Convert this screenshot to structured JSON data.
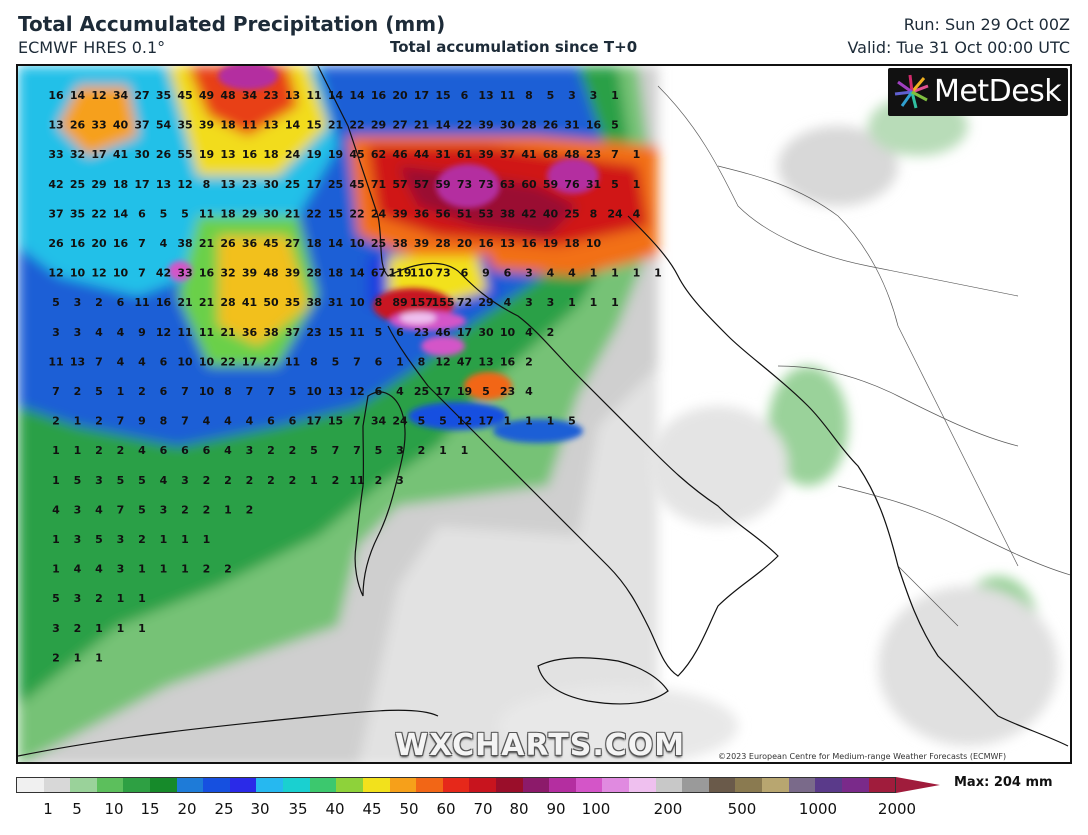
{
  "header": {
    "title": "Total Accumulated Precipitation (mm)",
    "model": "ECMWF HRES 0.1°",
    "subtitle": "Total accumulation since T+0",
    "run": "Run: Sun 29 Oct 00Z",
    "valid": "Valid: Tue 31 Oct 00:00 UTC"
  },
  "logo": {
    "text": "MetDesk",
    "icon": "metdesk-burst-icon"
  },
  "watermark": "WXCHARTS.COM",
  "copyright": "©2023 European Centre for Medium-range Weather Forecasts (ECMWF)",
  "colorbar": {
    "max_label": "Max: 204 mm",
    "ticks": [
      "1",
      "5",
      "10",
      "15",
      "20",
      "25",
      "30",
      "35",
      "40",
      "45",
      "50",
      "60",
      "70",
      "80",
      "90",
      "100",
      "200",
      "500",
      "1000",
      "2000"
    ],
    "colors": [
      "#f0f0f0",
      "#d8d8d8",
      "#9ad29a",
      "#5cbf5c",
      "#2ea043",
      "#168a2a",
      "#1e7bd8",
      "#1650e0",
      "#2a2ae8",
      "#26b8f0",
      "#1ad0d0",
      "#3cc86e",
      "#8ed23a",
      "#f2e11c",
      "#f6a01a",
      "#f26616",
      "#e6281a",
      "#c8141e",
      "#9a0e2a",
      "#8c1a6a",
      "#b42ea0",
      "#d455c8",
      "#e08ae0",
      "#efc0ef",
      "#c8c8c8",
      "#9a9a9a",
      "#6a5a4a",
      "#8a7a50",
      "#b8a670",
      "#7a6a8a",
      "#5a3a8a",
      "#7a2a8a",
      "#a01c3c"
    ]
  },
  "grid_values": [
    [
      "16",
      "14",
      "12",
      "34",
      "27",
      "35",
      "45",
      "49",
      "48",
      "34",
      "23",
      "13",
      "11",
      "14",
      "14",
      "16",
      "20",
      "17",
      "15",
      "6",
      "13",
      "11",
      "8",
      "5",
      "3",
      "3",
      "1"
    ],
    [
      "13",
      "26",
      "33",
      "40",
      "37",
      "54",
      "35",
      "39",
      "18",
      "11",
      "13",
      "14",
      "15",
      "21",
      "22",
      "29",
      "27",
      "21",
      "14",
      "22",
      "39",
      "30",
      "28",
      "26",
      "31",
      "16",
      "5"
    ],
    [
      "33",
      "32",
      "17",
      "41",
      "30",
      "26",
      "55",
      "19",
      "13",
      "16",
      "18",
      "24",
      "19",
      "19",
      "45",
      "62",
      "46",
      "44",
      "31",
      "61",
      "39",
      "37",
      "41",
      "68",
      "48",
      "23",
      "7",
      "1"
    ],
    [
      "42",
      "25",
      "29",
      "18",
      "17",
      "13",
      "12",
      "8",
      "13",
      "23",
      "30",
      "25",
      "17",
      "25",
      "45",
      "71",
      "57",
      "57",
      "59",
      "73",
      "73",
      "63",
      "60",
      "59",
      "76",
      "31",
      "5",
      "1"
    ],
    [
      "37",
      "35",
      "22",
      "14",
      "6",
      "5",
      "5",
      "11",
      "18",
      "29",
      "30",
      "21",
      "22",
      "15",
      "22",
      "24",
      "39",
      "36",
      "56",
      "51",
      "53",
      "38",
      "42",
      "40",
      "25",
      "8",
      "24",
      "4"
    ],
    [
      "26",
      "16",
      "20",
      "16",
      "7",
      "4",
      "38",
      "21",
      "26",
      "36",
      "45",
      "27",
      "18",
      "14",
      "10",
      "25",
      "38",
      "39",
      "28",
      "20",
      "16",
      "13",
      "16",
      "19",
      "18",
      "10"
    ],
    [
      "12",
      "10",
      "12",
      "10",
      "7",
      "42",
      "33",
      "16",
      "32",
      "39",
      "48",
      "39",
      "28",
      "18",
      "14",
      "67",
      "119",
      "110",
      "73",
      "6",
      "9",
      "6",
      "3",
      "4",
      "4",
      "1",
      "1",
      "1",
      "1"
    ],
    [
      "5",
      "3",
      "2",
      "6",
      "11",
      "16",
      "21",
      "21",
      "28",
      "41",
      "50",
      "35",
      "38",
      "31",
      "10",
      "8",
      "89",
      "157",
      "155",
      "72",
      "29",
      "4",
      "3",
      "3",
      "1",
      "1",
      "1"
    ],
    [
      "3",
      "3",
      "4",
      "4",
      "9",
      "12",
      "11",
      "11",
      "21",
      "36",
      "38",
      "37",
      "23",
      "15",
      "11",
      "5",
      "6",
      "23",
      "46",
      "17",
      "30",
      "10",
      "4",
      "2"
    ],
    [
      "11",
      "13",
      "7",
      "4",
      "4",
      "6",
      "10",
      "10",
      "22",
      "17",
      "27",
      "11",
      "8",
      "5",
      "7",
      "6",
      "1",
      "8",
      "12",
      "47",
      "13",
      "16",
      "2"
    ],
    [
      "7",
      "2",
      "5",
      "1",
      "2",
      "6",
      "7",
      "10",
      "8",
      "7",
      "7",
      "5",
      "10",
      "13",
      "12",
      "6",
      "4",
      "25",
      "17",
      "19",
      "5",
      "23",
      "4"
    ],
    [
      "2",
      "1",
      "2",
      "7",
      "9",
      "8",
      "7",
      "4",
      "4",
      "4",
      "6",
      "6",
      "17",
      "15",
      "7",
      "34",
      "24",
      "5",
      "5",
      "12",
      "17",
      "1",
      "1",
      "1",
      "5"
    ],
    [
      "1",
      "1",
      "2",
      "2",
      "4",
      "6",
      "6",
      "6",
      "4",
      "3",
      "2",
      "2",
      "5",
      "7",
      "7",
      "5",
      "3",
      "2",
      "1",
      "1"
    ],
    [
      "1",
      "5",
      "3",
      "5",
      "5",
      "4",
      "3",
      "2",
      "2",
      "2",
      "2",
      "2",
      "1",
      "2",
      "11",
      "2",
      "3"
    ],
    [
      "4",
      "3",
      "4",
      "7",
      "5",
      "3",
      "2",
      "2",
      "1",
      "2"
    ],
    [
      "1",
      "3",
      "5",
      "3",
      "2",
      "1",
      "1",
      "1"
    ],
    [
      "1",
      "4",
      "4",
      "3",
      "1",
      "1",
      "1",
      "2",
      "2"
    ],
    [
      "5",
      "3",
      "2",
      "1",
      "1"
    ],
    [
      "3",
      "2",
      "1",
      "1",
      "1"
    ],
    [
      "2",
      "1",
      "1"
    ]
  ]
}
